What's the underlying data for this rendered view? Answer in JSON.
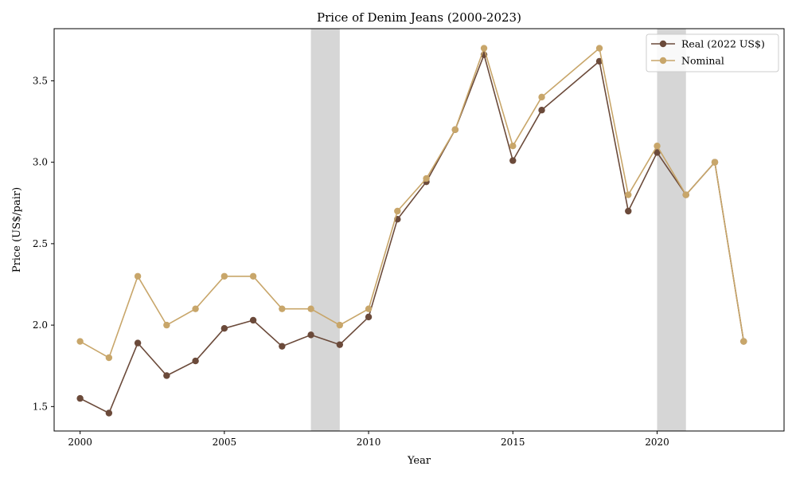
{
  "chart_data": {
    "type": "line",
    "title": "Price of Denim Jeans (2000-2023)",
    "xlabel": "Year",
    "ylabel": "Price (US$/pair)",
    "xlim": [
      1999.1,
      2024.4
    ],
    "ylim": [
      1.35,
      3.82
    ],
    "xticks": [
      2000,
      2005,
      2010,
      2015,
      2020
    ],
    "yticks": [
      1.5,
      2.0,
      2.5,
      3.0,
      3.5
    ],
    "grid": false,
    "legend_position": "top-right",
    "shaded_periods": [
      {
        "start": 2008,
        "end": 2009,
        "color": "#d6d6d6"
      },
      {
        "start": 2020,
        "end": 2021,
        "color": "#d6d6d6"
      }
    ],
    "series": [
      {
        "name": "Real (2022 US$)",
        "color": "#6b4a3a",
        "x": [
          2000,
          2001,
          2002,
          2003,
          2004,
          2005,
          2006,
          2007,
          2008,
          2009,
          2010,
          2011,
          2012,
          2013,
          2014,
          2015,
          2016,
          2018,
          2019,
          2020,
          2021,
          2022,
          2023
        ],
        "values": [
          1.55,
          1.46,
          1.89,
          1.69,
          1.78,
          1.98,
          2.03,
          1.87,
          1.94,
          1.88,
          2.05,
          2.65,
          2.88,
          3.2,
          3.66,
          3.01,
          3.32,
          3.62,
          2.7,
          3.06,
          2.8,
          3.0,
          1.9
        ]
      },
      {
        "name": "Nominal",
        "color": "#c8a66a",
        "x": [
          2000,
          2001,
          2002,
          2003,
          2004,
          2005,
          2006,
          2007,
          2008,
          2009,
          2010,
          2011,
          2012,
          2013,
          2014,
          2015,
          2016,
          2018,
          2019,
          2020,
          2021,
          2022,
          2023
        ],
        "values": [
          1.9,
          1.8,
          2.3,
          2.0,
          2.1,
          2.3,
          2.3,
          2.1,
          2.1,
          2.0,
          2.1,
          2.7,
          2.9,
          3.2,
          3.7,
          3.1,
          3.4,
          3.7,
          2.8,
          3.1,
          2.8,
          3.0,
          1.9
        ]
      }
    ]
  }
}
